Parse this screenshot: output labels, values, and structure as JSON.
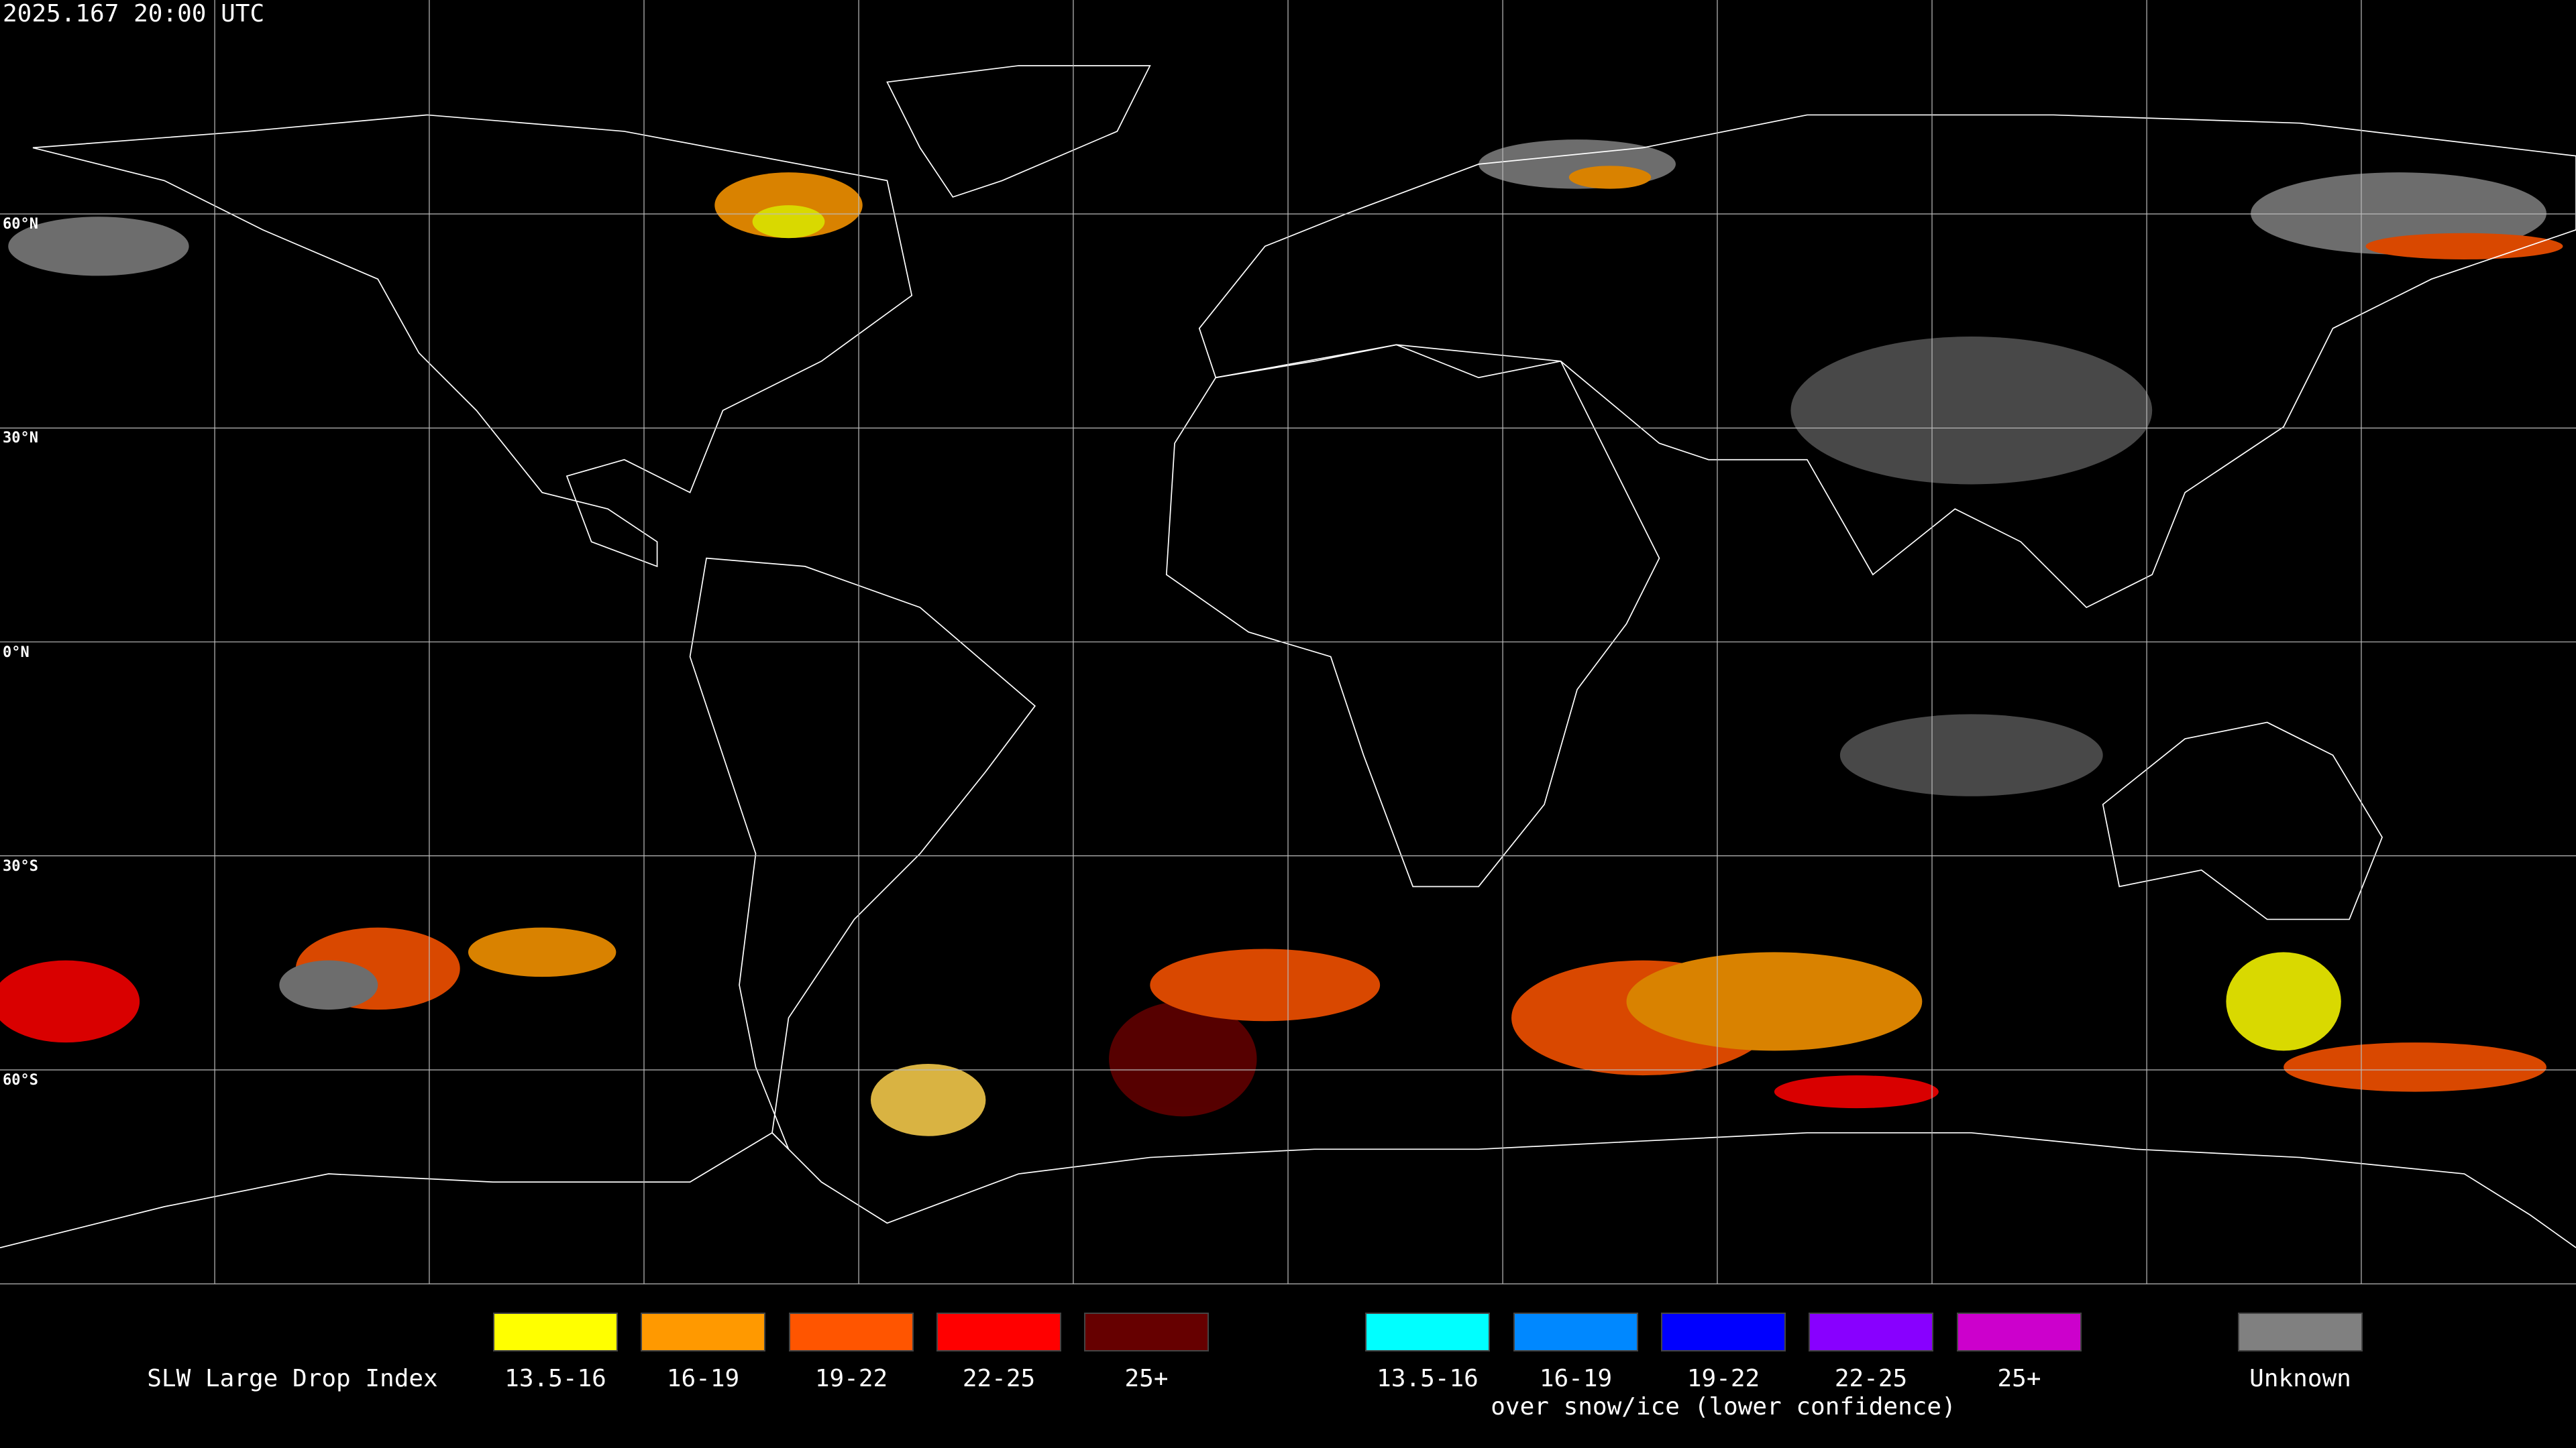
{
  "timestamp": "2025.167 20:00 UTC",
  "latitude_labels": [
    "60°N",
    "30°N",
    "0°N",
    "30°S",
    "60°S"
  ],
  "legend": {
    "title": "SLW Large Drop Index",
    "rain_items": [
      {
        "label": "13.5-16",
        "color": "#ffff00"
      },
      {
        "label": "16-19",
        "color": "#ff9900"
      },
      {
        "label": "19-22",
        "color": "#ff5500"
      },
      {
        "label": "22-25",
        "color": "#ff0000"
      },
      {
        "label": "25+",
        "color": "#660000"
      }
    ],
    "snow_items": [
      {
        "label": "13.5-16",
        "color": "#00ffff"
      },
      {
        "label": "16-19",
        "color": "#0088ff"
      },
      {
        "label": "19-22",
        "color": "#0000ff"
      },
      {
        "label": "22-25",
        "color": "#8800ff"
      },
      {
        "label": "25+",
        "color": "#cc00cc"
      }
    ],
    "snow_caption": "over snow/ice (lower confidence)",
    "unknown": {
      "label": "Unknown",
      "color": "#808080"
    }
  }
}
